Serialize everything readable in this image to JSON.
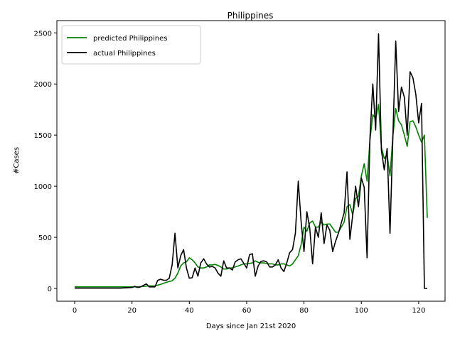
{
  "chart_data": {
    "type": "line",
    "title": "Philippines",
    "xlabel": "Days since Jan 21st 2020",
    "ylabel": "#Cases",
    "xlim": [
      -6.2,
      129.2
    ],
    "ylim": [
      -125,
      2620
    ],
    "xticks": [
      0,
      20,
      40,
      60,
      80,
      100,
      120
    ],
    "yticks": [
      0,
      500,
      1000,
      1500,
      2000,
      2500
    ],
    "grid": false,
    "legend_position": "upper left",
    "series": [
      {
        "name": "predicted Philippines",
        "color": "#008000",
        "x": [
          0,
          4,
          8,
          12,
          16,
          20,
          22,
          24,
          26,
          28,
          30,
          32,
          34,
          35,
          36,
          37,
          38,
          39,
          40,
          41,
          42,
          43,
          44,
          45,
          46,
          47,
          48,
          49,
          50,
          51,
          52,
          53,
          54,
          55,
          56,
          57,
          58,
          59,
          60,
          61,
          62,
          63,
          64,
          65,
          66,
          67,
          68,
          69,
          70,
          71,
          72,
          73,
          74,
          75,
          76,
          77,
          78,
          79,
          80,
          81,
          82,
          83,
          84,
          85,
          86,
          87,
          88,
          89,
          90,
          91,
          92,
          93,
          94,
          95,
          96,
          97,
          98,
          99,
          100,
          101,
          102,
          103,
          104,
          105,
          106,
          107,
          108,
          109,
          110,
          111,
          112,
          113,
          114,
          115,
          116,
          117,
          118,
          119,
          120,
          121,
          122,
          123
        ],
        "y": [
          15,
          15,
          15,
          15,
          15,
          15,
          15,
          20,
          25,
          25,
          40,
          60,
          75,
          100,
          150,
          220,
          250,
          260,
          300,
          280,
          250,
          210,
          200,
          200,
          210,
          230,
          230,
          235,
          225,
          210,
          190,
          190,
          200,
          200,
          210,
          220,
          230,
          240,
          240,
          245,
          250,
          270,
          255,
          250,
          250,
          245,
          240,
          240,
          230,
          230,
          240,
          240,
          230,
          220,
          240,
          280,
          320,
          430,
          600,
          560,
          640,
          660,
          600,
          600,
          650,
          620,
          630,
          630,
          590,
          550,
          550,
          600,
          650,
          800,
          820,
          720,
          880,
          900,
          1100,
          1220,
          1050,
          1450,
          1700,
          1660,
          1800,
          1380,
          1270,
          1310,
          1100,
          1490,
          1760,
          1640,
          1600,
          1500,
          1390,
          1630,
          1640,
          1580,
          1500,
          1430,
          1500,
          690
        ]
      },
      {
        "name": "actual Philippines",
        "color": "#000000",
        "x": [
          0,
          4,
          8,
          12,
          16,
          20,
          21,
          22,
          23,
          24,
          25,
          26,
          27,
          28,
          29,
          30,
          31,
          32,
          33,
          34,
          35,
          36,
          37,
          38,
          39,
          40,
          41,
          42,
          43,
          44,
          45,
          46,
          47,
          48,
          49,
          50,
          51,
          52,
          53,
          54,
          55,
          56,
          57,
          58,
          59,
          60,
          61,
          62,
          63,
          64,
          65,
          66,
          67,
          68,
          69,
          70,
          71,
          72,
          73,
          74,
          75,
          76,
          77,
          78,
          79,
          80,
          81,
          82,
          83,
          84,
          85,
          86,
          87,
          88,
          89,
          90,
          91,
          92,
          93,
          94,
          95,
          96,
          97,
          98,
          99,
          100,
          101,
          102,
          103,
          104,
          105,
          106,
          107,
          108,
          109,
          110,
          111,
          112,
          113,
          114,
          115,
          116,
          117,
          118,
          119,
          120,
          121,
          122,
          123
        ],
        "y": [
          3,
          3,
          3,
          3,
          3,
          10,
          20,
          10,
          15,
          30,
          45,
          15,
          15,
          15,
          80,
          90,
          80,
          80,
          100,
          230,
          540,
          200,
          320,
          380,
          200,
          100,
          105,
          200,
          120,
          250,
          290,
          240,
          210,
          215,
          200,
          150,
          120,
          270,
          200,
          200,
          180,
          260,
          280,
          290,
          245,
          200,
          330,
          340,
          120,
          220,
          265,
          270,
          260,
          210,
          210,
          230,
          280,
          200,
          165,
          250,
          350,
          380,
          540,
          1050,
          650,
          360,
          750,
          590,
          240,
          600,
          500,
          740,
          440,
          620,
          570,
          360,
          460,
          540,
          640,
          740,
          1140,
          480,
          720,
          1000,
          800,
          1080,
          990,
          300,
          1470,
          2000,
          1550,
          2490,
          1350,
          1160,
          1370,
          540,
          1480,
          2420,
          1730,
          1970,
          1870,
          1500,
          2120,
          2060,
          1900,
          1620,
          1810,
          0,
          0
        ]
      }
    ]
  }
}
